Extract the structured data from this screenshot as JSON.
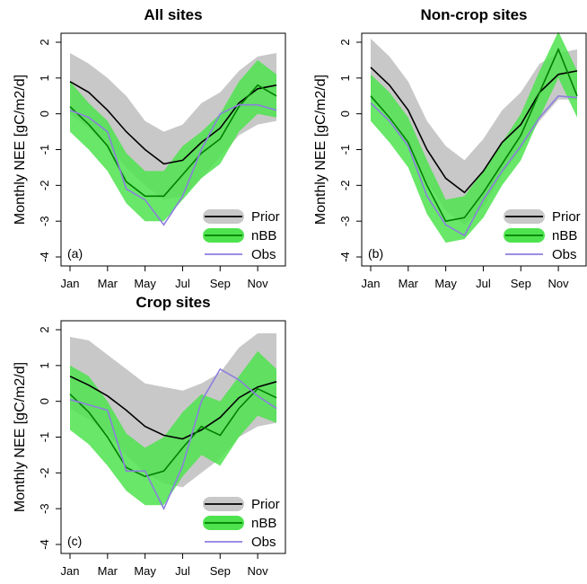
{
  "chart_data": [
    {
      "type": "line",
      "title": "All sites",
      "tag": "(a)",
      "ylabel": "Monthly NEE [gC/m2/d]",
      "x": [
        1,
        2,
        3,
        4,
        5,
        6,
        7,
        8,
        9,
        10,
        11,
        12
      ],
      "xticks": [
        1,
        3,
        5,
        7,
        9,
        11
      ],
      "xticklabels": [
        "Jan",
        "Mar",
        "May",
        "Jul",
        "Sep",
        "Nov"
      ],
      "xlim": [
        1,
        12
      ],
      "ylim": [
        -4,
        2
      ],
      "yticks": [
        -4,
        -3,
        -2,
        -1,
        0,
        1,
        2
      ],
      "legend": {
        "placement": "bottom-right",
        "entries": [
          "Prior",
          "nBB",
          "Obs"
        ]
      },
      "series": [
        {
          "name": "Prior",
          "color": "#000000",
          "band_color": "#c8c8c8",
          "values": [
            0.9,
            0.6,
            0.1,
            -0.5,
            -1.0,
            -1.4,
            -1.3,
            -0.8,
            -0.4,
            0.3,
            0.7,
            0.8
          ],
          "lower": [
            0.0,
            -0.4,
            -0.9,
            -1.5,
            -2.0,
            -2.4,
            -2.3,
            -1.8,
            -1.2,
            -0.6,
            -0.3,
            -0.2
          ],
          "upper": [
            1.7,
            1.4,
            1.0,
            0.5,
            -0.2,
            -0.5,
            -0.3,
            0.3,
            0.6,
            1.2,
            1.6,
            1.7
          ]
        },
        {
          "name": "nBB",
          "color": "#008000",
          "band_color": "#4ee34e",
          "values": [
            0.2,
            -0.3,
            -0.9,
            -1.9,
            -2.3,
            -2.3,
            -1.7,
            -1.1,
            -0.7,
            0.2,
            0.8,
            0.5
          ],
          "lower": [
            -0.5,
            -1.0,
            -1.6,
            -2.5,
            -3.0,
            -3.0,
            -2.4,
            -1.8,
            -1.4,
            -0.5,
            0.0,
            -0.1
          ],
          "upper": [
            0.9,
            0.3,
            -0.2,
            -1.1,
            -1.6,
            -1.6,
            -0.9,
            -0.5,
            0.0,
            0.9,
            1.5,
            1.1
          ]
        },
        {
          "name": "Obs",
          "color": "#8c7fe0",
          "values": [
            0.1,
            -0.1,
            -0.5,
            -2.1,
            -2.4,
            -3.1,
            -2.3,
            -1.0,
            0.0,
            0.25,
            0.25,
            0.1
          ]
        }
      ]
    },
    {
      "type": "line",
      "title": "Non-crop sites",
      "tag": "(b)",
      "ylabel": "Monthly NEE [gC/m2/d]",
      "x": [
        1,
        2,
        3,
        4,
        5,
        6,
        7,
        8,
        9,
        10,
        11,
        12
      ],
      "xticks": [
        1,
        3,
        5,
        7,
        9,
        11
      ],
      "xticklabels": [
        "Jan",
        "Mar",
        "May",
        "Jul",
        "Sep",
        "Nov"
      ],
      "xlim": [
        1,
        12
      ],
      "ylim": [
        -4,
        2
      ],
      "yticks": [
        -4,
        -3,
        -2,
        -1,
        0,
        1,
        2
      ],
      "legend": {
        "placement": "bottom-right",
        "entries": [
          "Prior",
          "nBB",
          "Obs"
        ]
      },
      "series": [
        {
          "name": "Prior",
          "color": "#000000",
          "band_color": "#c8c8c8",
          "values": [
            1.3,
            0.8,
            0.1,
            -1.0,
            -1.8,
            -2.2,
            -1.6,
            -0.8,
            -0.3,
            0.6,
            1.1,
            1.2
          ],
          "lower": [
            0.4,
            0.0,
            -0.8,
            -1.9,
            -2.7,
            -3.1,
            -2.6,
            -1.7,
            -1.0,
            -0.2,
            0.4,
            0.4
          ],
          "upper": [
            2.1,
            1.6,
            0.9,
            -0.2,
            -0.9,
            -1.3,
            -0.7,
            0.1,
            0.6,
            1.4,
            1.7,
            1.8
          ]
        },
        {
          "name": "nBB",
          "color": "#008000",
          "band_color": "#4ee34e",
          "values": [
            0.5,
            -0.1,
            -0.8,
            -2.0,
            -3.0,
            -2.9,
            -2.2,
            -1.4,
            -0.6,
            0.6,
            1.8,
            0.5
          ],
          "lower": [
            -0.2,
            -0.8,
            -1.5,
            -2.8,
            -3.6,
            -3.5,
            -2.9,
            -2.0,
            -1.3,
            -0.1,
            1.0,
            -0.1
          ],
          "upper": [
            1.1,
            0.6,
            -0.1,
            -1.3,
            -2.4,
            -2.3,
            -1.6,
            -0.8,
            0.0,
            1.2,
            2.3,
            1.2
          ]
        },
        {
          "name": "Obs",
          "color": "#8c7fe0",
          "values": [
            0.3,
            -0.2,
            -0.9,
            -2.3,
            -3.1,
            -3.4,
            -2.4,
            -1.6,
            -0.9,
            -0.1,
            0.5,
            0.45
          ]
        }
      ]
    },
    {
      "type": "line",
      "title": "Crop sites",
      "tag": "(c)",
      "ylabel": "Monthly NEE [gC/m2/d]",
      "x": [
        1,
        2,
        3,
        4,
        5,
        6,
        7,
        8,
        9,
        10,
        11,
        12
      ],
      "xticks": [
        1,
        3,
        5,
        7,
        9,
        11
      ],
      "xticklabels": [
        "Jan",
        "Mar",
        "May",
        "Jul",
        "Sep",
        "Nov"
      ],
      "xlim": [
        1,
        12
      ],
      "ylim": [
        -4,
        2
      ],
      "yticks": [
        -4,
        -3,
        -2,
        -1,
        0,
        1,
        2
      ],
      "legend": {
        "placement": "bottom-right",
        "entries": [
          "Prior",
          "nBB",
          "Obs"
        ]
      },
      "series": [
        {
          "name": "Prior",
          "color": "#000000",
          "band_color": "#c8c8c8",
          "values": [
            0.7,
            0.45,
            0.15,
            -0.25,
            -0.7,
            -0.95,
            -1.05,
            -0.8,
            -0.45,
            0.1,
            0.4,
            0.55
          ],
          "lower": [
            -0.2,
            -0.5,
            -0.9,
            -1.5,
            -2.0,
            -2.3,
            -2.4,
            -2.0,
            -1.6,
            -1.0,
            -0.7,
            -0.6
          ],
          "upper": [
            1.8,
            1.7,
            1.3,
            0.9,
            0.5,
            0.4,
            0.3,
            0.5,
            0.8,
            1.5,
            1.9,
            1.9
          ]
        },
        {
          "name": "nBB",
          "color": "#008000",
          "band_color": "#4ee34e",
          "values": [
            0.2,
            -0.3,
            -1.0,
            -1.85,
            -2.1,
            -1.95,
            -1.3,
            -0.7,
            -0.95,
            -0.2,
            0.35,
            0.1
          ],
          "lower": [
            -0.8,
            -1.2,
            -1.8,
            -2.5,
            -2.9,
            -2.9,
            -2.1,
            -1.5,
            -1.8,
            -1.0,
            -0.4,
            -0.6
          ],
          "upper": [
            1.0,
            0.7,
            0.0,
            -0.9,
            -1.3,
            -1.0,
            -0.3,
            0.2,
            0.0,
            0.7,
            1.4,
            0.9
          ]
        },
        {
          "name": "Obs",
          "color": "#8c7fe0",
          "values": [
            0.05,
            -0.1,
            -0.25,
            -1.95,
            -1.95,
            -3.0,
            -1.8,
            0.0,
            0.9,
            0.6,
            0.15,
            -0.2
          ]
        }
      ]
    }
  ]
}
